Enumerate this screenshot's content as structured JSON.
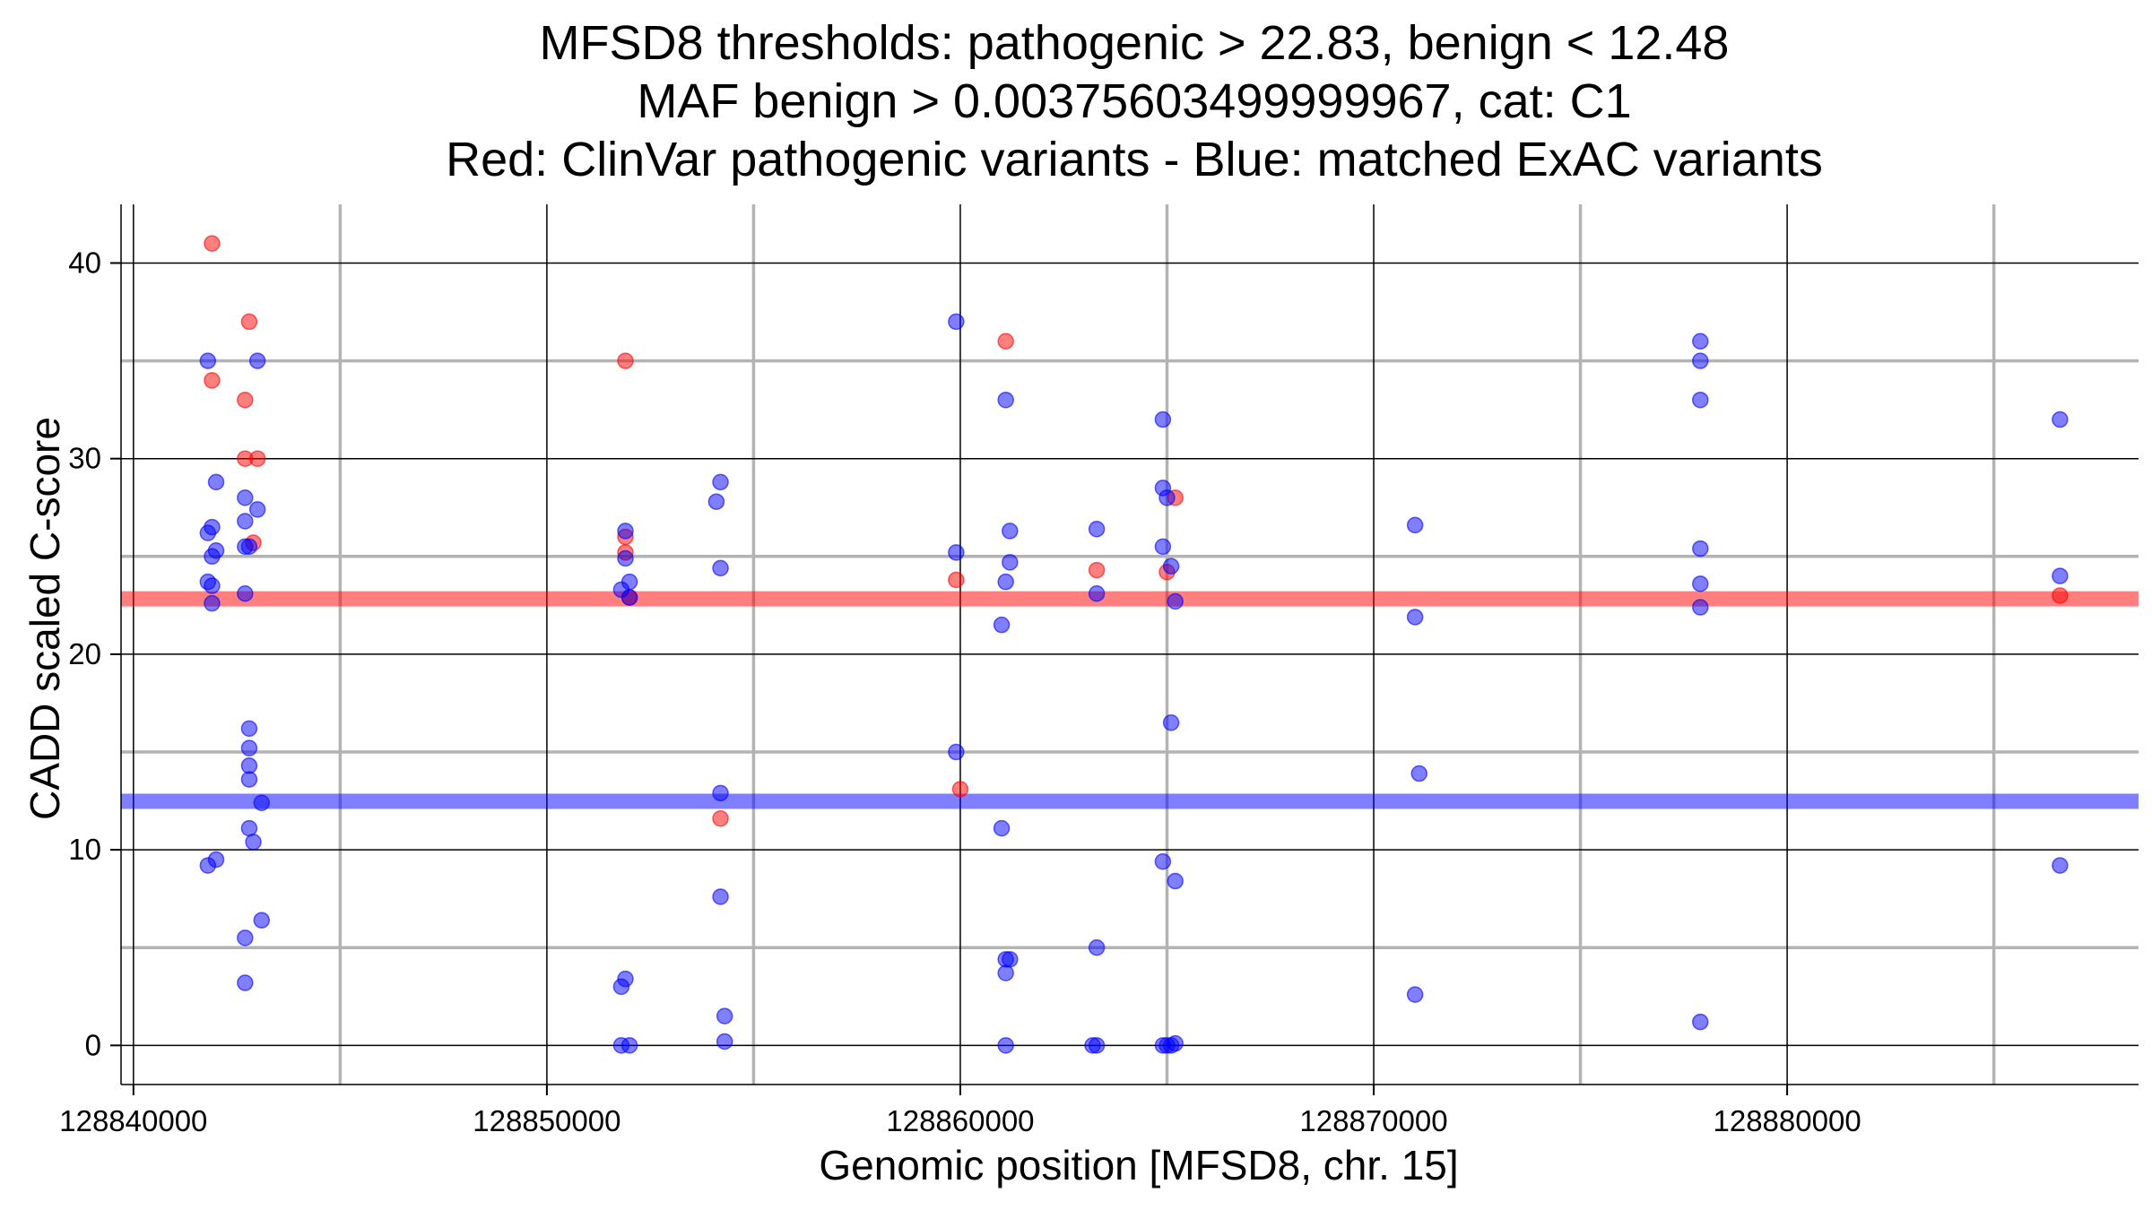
{
  "chart_data": {
    "type": "scatter",
    "title_lines": [
      "MFSD8 thresholds: pathogenic > 22.83, benign < 12.48",
      "MAF benign > 0.00375603499999967, cat: C1",
      "Red: ClinVar pathogenic variants - Blue: matched ExAC variants"
    ],
    "xlabel": "Genomic position [MFSD8, chr. 15]",
    "ylabel": "CADD scaled C-score",
    "xlim": [
      128839700,
      128888500
    ],
    "ylim": [
      -2,
      43
    ],
    "x_ticks": [
      128840000,
      128850000,
      128860000,
      128870000,
      128880000
    ],
    "x_tick_labels": [
      "128840000",
      "128850000",
      "128860000",
      "128870000",
      "128880000"
    ],
    "y_ticks": [
      0,
      10,
      20,
      30,
      40
    ],
    "y_tick_labels": [
      "0",
      "10",
      "20",
      "30",
      "40"
    ],
    "x_minor_grid": [
      128845000,
      128855000,
      128865000,
      128875000,
      128885000
    ],
    "y_minor_grid": [
      5,
      15,
      25,
      35
    ],
    "grid": true,
    "thresholds": [
      {
        "name": "pathogenic",
        "value": 22.83,
        "color": "#ff0000"
      },
      {
        "name": "benign",
        "value": 12.48,
        "color": "#0000ff"
      }
    ],
    "series": [
      {
        "color": "#ff0000",
        "points": [
          [
            128841900,
            41.0
          ],
          [
            128842800,
            37.0
          ],
          [
            128841900,
            34.0
          ],
          [
            128842700,
            33.0
          ],
          [
            128842700,
            30.0
          ],
          [
            128843000,
            30.0
          ],
          [
            128842900,
            25.7
          ],
          [
            128851900,
            35.0
          ],
          [
            128851900,
            26.0
          ],
          [
            128851900,
            25.2
          ],
          [
            128852000,
            22.9
          ],
          [
            128854200,
            11.6
          ],
          [
            128859900,
            23.8
          ],
          [
            128860000,
            13.1
          ],
          [
            128861100,
            36.0
          ],
          [
            128863300,
            24.3
          ],
          [
            128865000,
            24.2
          ],
          [
            128865200,
            28.0
          ],
          [
            128886600,
            23.0
          ]
        ]
      },
      {
        "color": "#0000ff",
        "points": [
          [
            128841800,
            35.0
          ],
          [
            128843000,
            35.0
          ],
          [
            128842000,
            28.8
          ],
          [
            128842700,
            28.0
          ],
          [
            128843000,
            27.4
          ],
          [
            128842700,
            26.8
          ],
          [
            128841900,
            26.5
          ],
          [
            128841800,
            26.2
          ],
          [
            128842700,
            25.5
          ],
          [
            128842800,
            25.5
          ],
          [
            128842000,
            25.3
          ],
          [
            128841900,
            25.0
          ],
          [
            128841800,
            23.7
          ],
          [
            128841900,
            23.5
          ],
          [
            128842700,
            23.1
          ],
          [
            128841900,
            22.6
          ],
          [
            128842800,
            16.2
          ],
          [
            128842800,
            15.2
          ],
          [
            128842800,
            14.3
          ],
          [
            128842800,
            13.6
          ],
          [
            128843100,
            12.4
          ],
          [
            128842800,
            11.1
          ],
          [
            128842900,
            10.4
          ],
          [
            128842000,
            9.5
          ],
          [
            128841800,
            9.2
          ],
          [
            128843100,
            6.4
          ],
          [
            128842700,
            5.5
          ],
          [
            128842700,
            3.2
          ],
          [
            128851900,
            26.3
          ],
          [
            128851900,
            24.9
          ],
          [
            128852000,
            23.7
          ],
          [
            128851800,
            23.3
          ],
          [
            128852000,
            22.9
          ],
          [
            128851900,
            3.4
          ],
          [
            128851800,
            3.0
          ],
          [
            128851800,
            0.0
          ],
          [
            128852000,
            0.0
          ],
          [
            128854200,
            28.8
          ],
          [
            128854100,
            27.8
          ],
          [
            128854200,
            24.4
          ],
          [
            128854200,
            12.9
          ],
          [
            128854200,
            7.6
          ],
          [
            128854300,
            1.5
          ],
          [
            128854300,
            0.2
          ],
          [
            128859900,
            37.0
          ],
          [
            128859900,
            25.2
          ],
          [
            128859900,
            15.0
          ],
          [
            128861100,
            33.0
          ],
          [
            128861200,
            26.3
          ],
          [
            128861200,
            24.7
          ],
          [
            128861100,
            23.7
          ],
          [
            128861000,
            21.5
          ],
          [
            128861000,
            11.1
          ],
          [
            128861100,
            4.4
          ],
          [
            128861200,
            4.4
          ],
          [
            128861100,
            3.7
          ],
          [
            128861100,
            0.0
          ],
          [
            128863300,
            26.4
          ],
          [
            128863300,
            23.1
          ],
          [
            128863300,
            5.0
          ],
          [
            128863200,
            0.0
          ],
          [
            128863300,
            0.0
          ],
          [
            128864900,
            32.0
          ],
          [
            128864900,
            28.5
          ],
          [
            128865000,
            28.0
          ],
          [
            128864900,
            25.5
          ],
          [
            128865100,
            24.5
          ],
          [
            128865200,
            22.7
          ],
          [
            128865100,
            16.5
          ],
          [
            128865200,
            8.4
          ],
          [
            128864900,
            9.4
          ],
          [
            128864900,
            0.0
          ],
          [
            128865000,
            0.0
          ],
          [
            128865100,
            0.0
          ],
          [
            128865200,
            0.1
          ],
          [
            128871000,
            26.6
          ],
          [
            128871000,
            21.9
          ],
          [
            128871100,
            13.9
          ],
          [
            128871000,
            2.6
          ],
          [
            128877900,
            36.0
          ],
          [
            128877900,
            35.0
          ],
          [
            128877900,
            33.0
          ],
          [
            128877900,
            25.4
          ],
          [
            128877900,
            23.6
          ],
          [
            128877900,
            22.4
          ],
          [
            128877900,
            1.2
          ],
          [
            128886600,
            32.0
          ],
          [
            128886600,
            24.0
          ],
          [
            128886600,
            9.2
          ]
        ]
      }
    ]
  }
}
